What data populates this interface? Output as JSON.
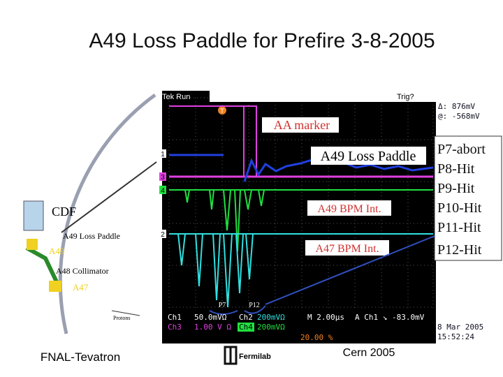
{
  "header": {
    "title": "A49 Loss Paddle for Prefire 3-8-2005"
  },
  "scope": {
    "status": "Tek Run",
    "trigger": "Trig?",
    "cursor_delta": "Δ: 876mV",
    "cursor_at": "@: -568mV",
    "channel_markers": [
      "1",
      "3",
      "4",
      "2"
    ],
    "trigger_marker": "T",
    "labels": {
      "aa_marker": "AA marker",
      "loss_paddle": "A49 Loss Paddle",
      "a49_bpm": "A49 BPM Int.",
      "a47_bpm": "A47 BPM Int.",
      "p7": "P7",
      "p12": "P12"
    },
    "readout": {
      "ch1": "Ch1",
      "ch1_scale": "50.0mVΩ",
      "ch2": "Ch2",
      "ch2_scale": "200mVΩ",
      "time": "M 2.00µs",
      "trig": "A  Ch1 ↘ -83.0mV",
      "ch3": "Ch3",
      "ch3_scale": "1.00 V Ω",
      "ch4": "Ch4",
      "ch4_scale": "200mVΩ",
      "position": "20.00 %",
      "date": "8 Mar  2005",
      "clock": "15:52:24"
    }
  },
  "hits": [
    "P7-abort",
    "P8-Hit",
    "P9-Hit",
    "P10-Hit",
    "P11-Hit",
    "P12-Hit"
  ],
  "diagram": {
    "cdf": "CDF",
    "loss_paddle": "A49 Loss Paddle",
    "a49": "A49",
    "a48": "A48 Collimator",
    "a47": "A47",
    "protons": "Protons"
  },
  "footer": {
    "left": "FNAL-Tevatron",
    "center": "Cern 2005",
    "logo": "Fermilab"
  }
}
